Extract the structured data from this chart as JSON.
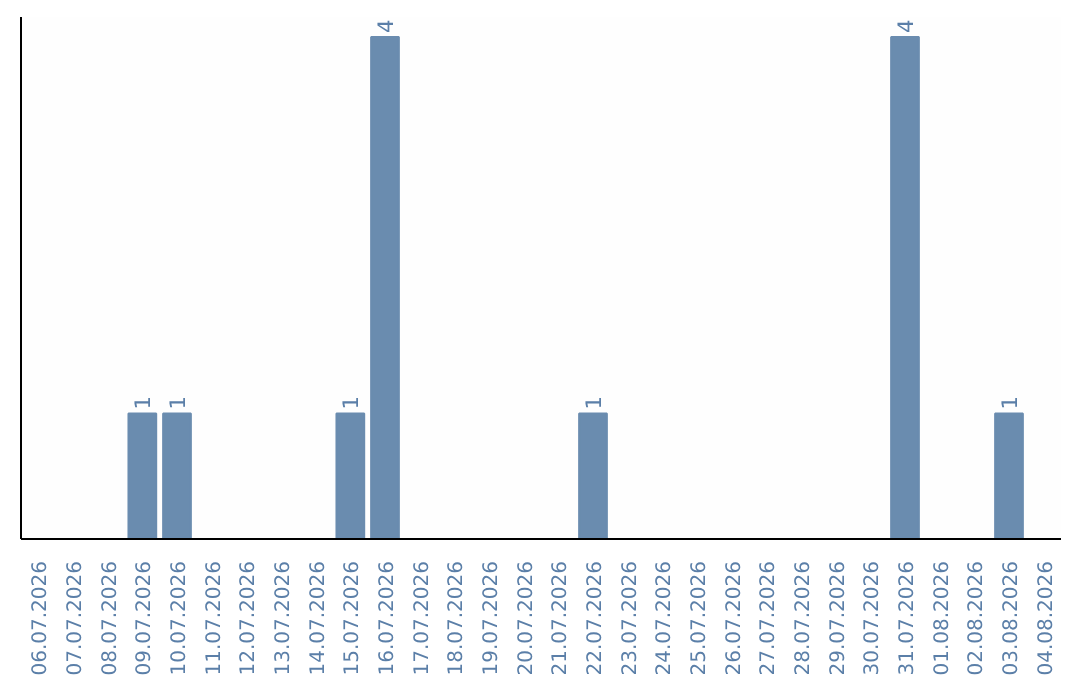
{
  "chart_data": {
    "type": "bar",
    "categories": [
      "06.07.2026",
      "07.07.2026",
      "08.07.2026",
      "09.07.2026",
      "10.07.2026",
      "11.07.2026",
      "12.07.2026",
      "13.07.2026",
      "14.07.2026",
      "15.07.2026",
      "16.07.2026",
      "17.07.2026",
      "18.07.2026",
      "19.07.2026",
      "20.07.2026",
      "21.07.2026",
      "22.07.2026",
      "23.07.2026",
      "24.07.2026",
      "25.07.2026",
      "26.07.2026",
      "27.07.2026",
      "28.07.2026",
      "29.07.2026",
      "30.07.2026",
      "31.07.2026",
      "01.08.2026",
      "02.08.2026",
      "03.08.2026",
      "04.08.2026"
    ],
    "values": [
      0,
      0,
      0,
      1,
      1,
      0,
      0,
      0,
      0,
      1,
      4,
      0,
      0,
      0,
      0,
      0,
      1,
      0,
      0,
      0,
      0,
      0,
      0,
      0,
      0,
      4,
      0,
      0,
      1,
      0
    ],
    "value_labels": [
      null,
      null,
      null,
      "1",
      "1",
      null,
      null,
      null,
      null,
      "1",
      "4",
      null,
      null,
      null,
      null,
      null,
      "1",
      null,
      null,
      null,
      null,
      null,
      null,
      null,
      null,
      "4",
      null,
      null,
      "1",
      null
    ],
    "color": "#6a8caf",
    "grid": false,
    "tick_labels": "x"
  }
}
